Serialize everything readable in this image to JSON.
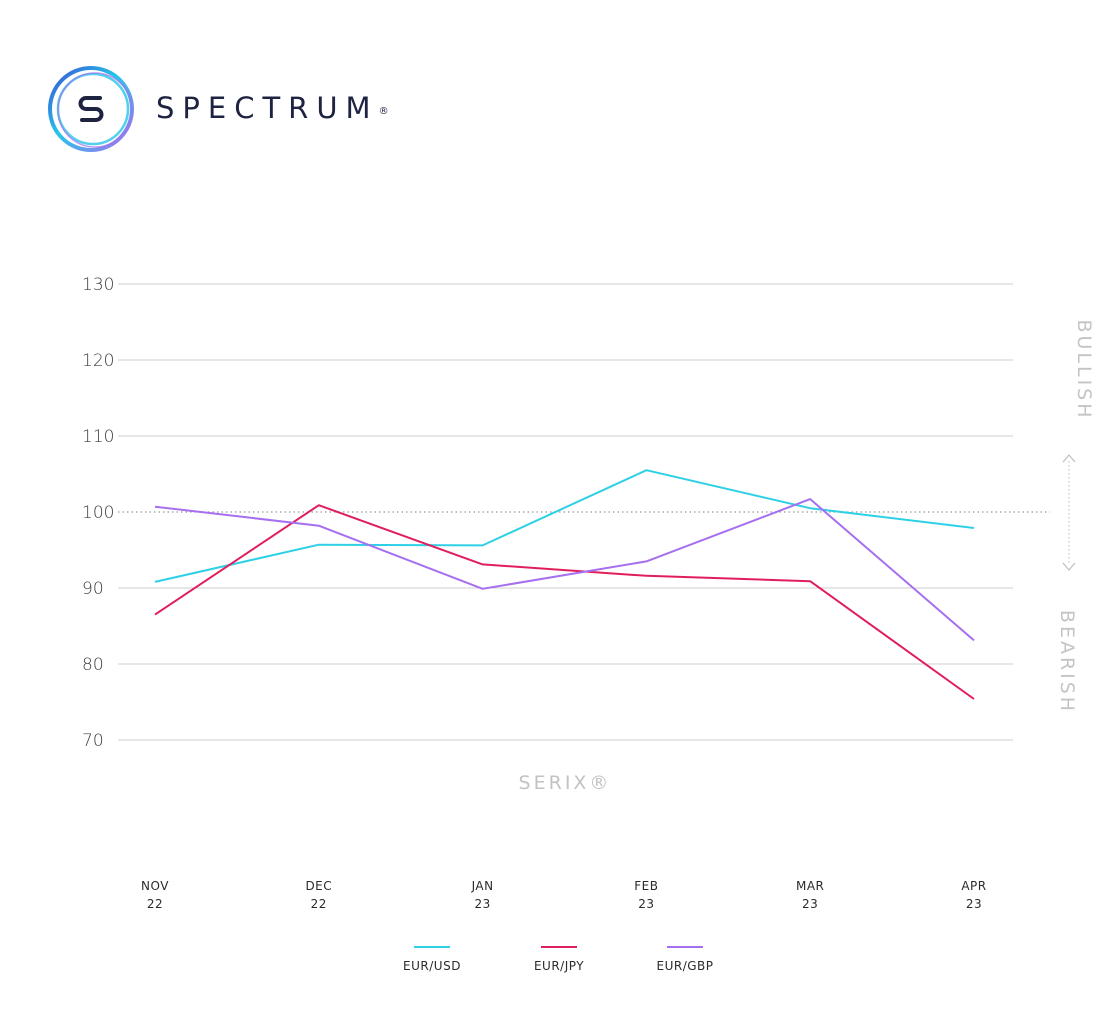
{
  "brand": {
    "name": "SPECTRUM",
    "mark": "®",
    "logo_icon": "spectrum-s-ring-logo"
  },
  "colors": {
    "eur_usd": "#2ed0e6",
    "eur_jpy": "#e11e5c",
    "eur_gbp": "#a66ff0",
    "grid": "#cfcfcf",
    "reference": "#9a9a9a",
    "side_label": "#c4c4c4"
  },
  "chart_data": {
    "type": "line",
    "title": "SERIX®",
    "categories": [
      [
        "NOV",
        "22"
      ],
      [
        "DEC",
        "22"
      ],
      [
        "JAN",
        "23"
      ],
      [
        "FEB",
        "23"
      ],
      [
        "MAR",
        "23"
      ],
      [
        "APR",
        "23"
      ]
    ],
    "series": [
      {
        "name": "EUR/USD",
        "values": [
          90.8,
          95.7,
          95.6,
          105.5,
          100.5,
          97.9
        ]
      },
      {
        "name": "EUR/JPY",
        "values": [
          86.5,
          100.9,
          93.1,
          91.6,
          90.9,
          75.4
        ]
      },
      {
        "name": "EUR/GBP",
        "values": [
          100.7,
          98.2,
          89.9,
          93.5,
          101.7,
          83.1
        ]
      }
    ],
    "ylim": [
      70,
      130
    ],
    "yticks": [
      130,
      120,
      110,
      100,
      90,
      80,
      70
    ],
    "reference_line": 100,
    "side_labels": {
      "top": "BULLISH",
      "bottom": "BEARISH"
    },
    "grid": true,
    "legend": "bottom-center",
    "xlabel": "",
    "ylabel": ""
  }
}
